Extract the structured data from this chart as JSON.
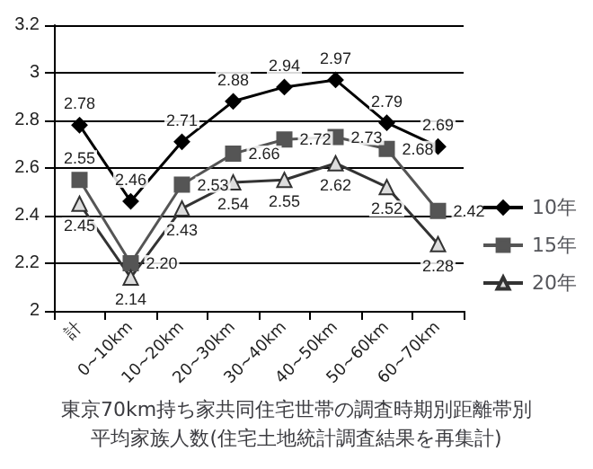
{
  "chart_data": {
    "type": "line",
    "title": "東京70km持ち家共同住宅世帯の調査時期別距離帯別平均家族人数(住宅土地統計調査結果を再集計)",
    "categories": [
      "計",
      "0~10km",
      "10~20km",
      "20~30km",
      "30~40km",
      "40~50km",
      "50~60km",
      "60~70km"
    ],
    "series": [
      {
        "name": "10年",
        "color": "#000000",
        "marker": "diamond",
        "values": [
          2.78,
          2.46,
          2.71,
          2.88,
          2.94,
          2.97,
          2.79,
          2.69
        ],
        "value_labels": [
          "2.78",
          "2.46",
          "2.71",
          "2.88",
          "2.94",
          "2.97",
          "2.79",
          "2.69"
        ]
      },
      {
        "name": "15年",
        "color": "#555555",
        "marker": "square",
        "values": [
          2.55,
          2.2,
          2.53,
          2.66,
          2.72,
          2.73,
          2.68,
          2.42
        ],
        "value_labels": [
          "2.55",
          "2.20",
          "2.53",
          "2.66",
          "2.72",
          "2.73",
          "2.68",
          "2.42"
        ]
      },
      {
        "name": "20年",
        "color": "#333333",
        "marker": "triangle",
        "values": [
          2.45,
          2.14,
          2.43,
          2.54,
          2.55,
          2.62,
          2.52,
          2.28
        ],
        "value_labels": [
          "2.45",
          "2.14",
          "2.43",
          "2.54",
          "2.55",
          "2.62",
          "2.52",
          "2.28"
        ]
      }
    ],
    "ylim": [
      2,
      3.2
    ],
    "yticks": [
      2,
      2.2,
      2.4,
      2.6,
      2.8,
      3,
      3.2
    ],
    "grid": "y",
    "legend": "right"
  }
}
